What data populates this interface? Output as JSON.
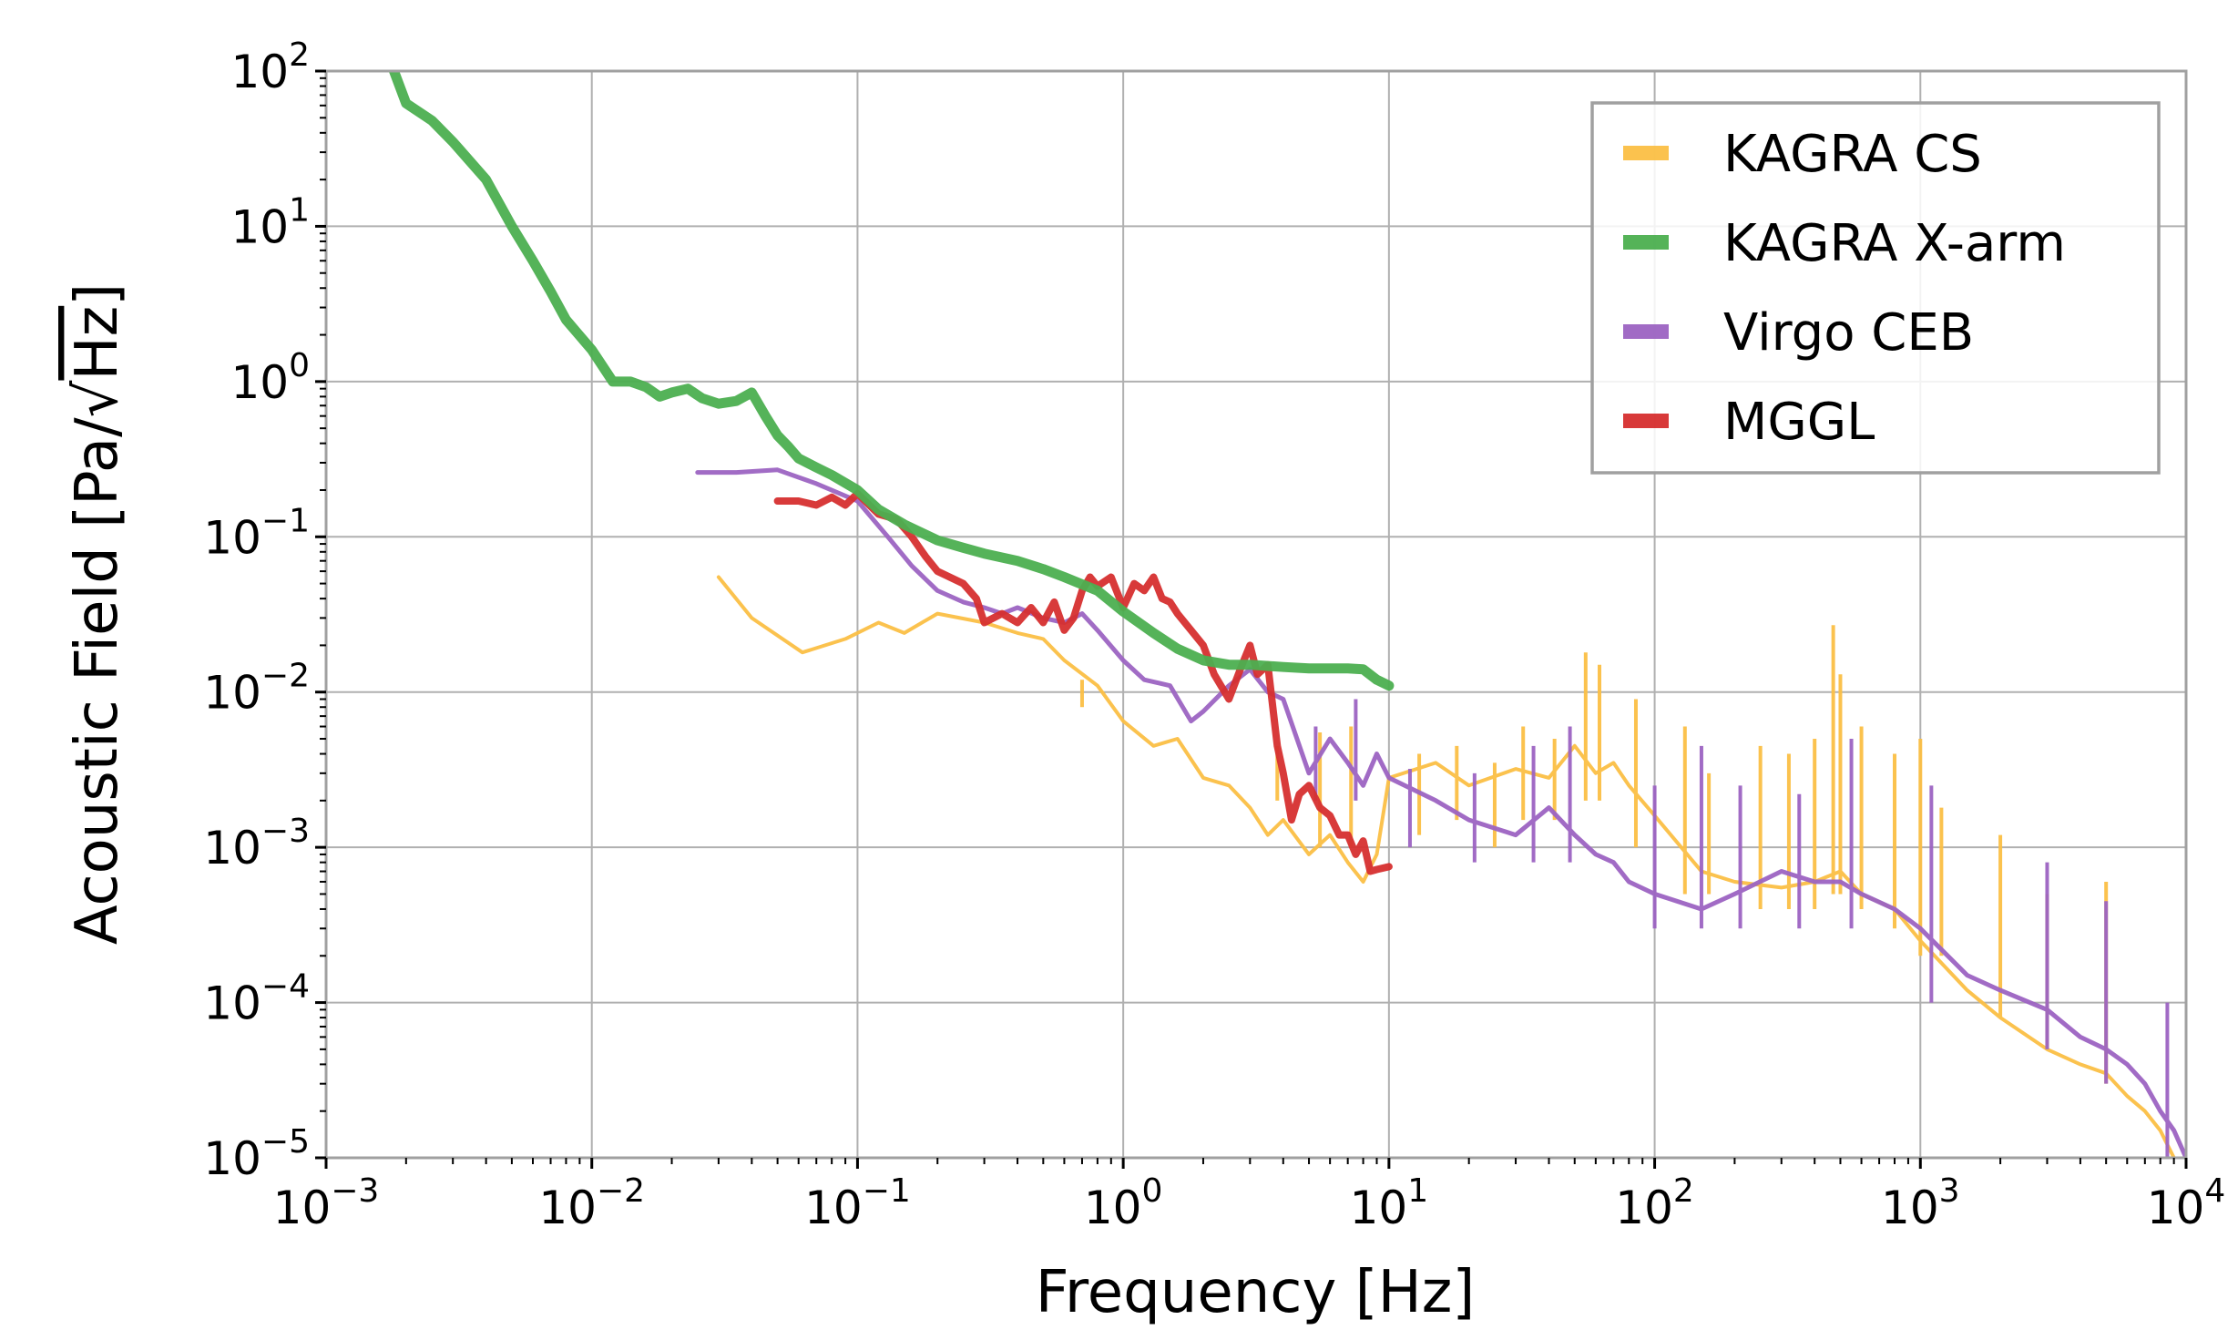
{
  "chart_data": {
    "type": "line",
    "xscale": "log",
    "yscale": "log",
    "xlabel": "Frequency [Hz]",
    "ylabel": "Acoustic Field [Pa/√Hz]",
    "ylabel_parts": {
      "main": "Acoustic Field [Pa/",
      "sqrt": "√",
      "radicand": "Hz",
      "close": "]"
    },
    "xlim": [
      0.001,
      10000
    ],
    "ylim": [
      1e-05,
      100
    ],
    "grid": true,
    "legend_position": "top-right",
    "x_ticks": [
      {
        "value": 0.001,
        "base": "10",
        "exp": "−3"
      },
      {
        "value": 0.01,
        "base": "10",
        "exp": "−2"
      },
      {
        "value": 0.1,
        "base": "10",
        "exp": "−1"
      },
      {
        "value": 1,
        "base": "10",
        "exp": "0"
      },
      {
        "value": 10,
        "base": "10",
        "exp": "1"
      },
      {
        "value": 100,
        "base": "10",
        "exp": "2"
      },
      {
        "value": 1000,
        "base": "10",
        "exp": "3"
      },
      {
        "value": 10000,
        "base": "10",
        "exp": "4"
      }
    ],
    "y_ticks": [
      {
        "value": 100,
        "base": "10",
        "exp": "2"
      },
      {
        "value": 10,
        "base": "10",
        "exp": "1"
      },
      {
        "value": 1,
        "base": "10",
        "exp": "0"
      },
      {
        "value": 0.1,
        "base": "10",
        "exp": "−1"
      },
      {
        "value": 0.01,
        "base": "10",
        "exp": "−2"
      },
      {
        "value": 0.001,
        "base": "10",
        "exp": "−3"
      },
      {
        "value": 0.0001,
        "base": "10",
        "exp": "−4"
      },
      {
        "value": 1e-05,
        "base": "10",
        "exp": "−5"
      }
    ],
    "series": [
      {
        "name": "KAGRA CS",
        "color": "#fbbf45",
        "width": 4,
        "opacity": 0.95,
        "x": [
          0.03,
          0.04,
          0.062,
          0.09,
          0.12,
          0.15,
          0.2,
          0.3,
          0.4,
          0.5,
          0.6,
          0.8,
          1.0,
          1.3,
          1.6,
          2.0,
          2.5,
          3.0,
          3.5,
          4.0,
          5.0,
          6.0,
          7.0,
          8.0,
          9.0,
          10,
          15,
          20,
          30,
          40,
          50,
          60,
          70,
          80,
          100,
          150,
          200,
          300,
          400,
          500,
          600,
          800,
          1000,
          1500,
          2000,
          3000,
          4000,
          5000,
          6000,
          7000,
          8000,
          9000
        ],
        "y": [
          0.055,
          0.03,
          0.018,
          0.022,
          0.028,
          0.024,
          0.032,
          0.028,
          0.024,
          0.022,
          0.016,
          0.011,
          0.0065,
          0.0045,
          0.005,
          0.0028,
          0.0025,
          0.0018,
          0.0012,
          0.0015,
          0.0009,
          0.0012,
          0.0008,
          0.0006,
          0.0009,
          0.0028,
          0.0035,
          0.0025,
          0.0032,
          0.0028,
          0.0045,
          0.003,
          0.0035,
          0.0025,
          0.0016,
          0.0007,
          0.0006,
          0.00055,
          0.0006,
          0.0007,
          0.0005,
          0.0004,
          0.00025,
          0.00012,
          8e-05,
          5e-05,
          4e-05,
          3.5e-05,
          2.5e-05,
          2e-05,
          1.5e-05,
          1e-05
        ],
        "spikes": [
          {
            "x": 0.7,
            "y": 0.012,
            "base": 0.008
          },
          {
            "x": 3.8,
            "y": 0.0045,
            "base": 0.002
          },
          {
            "x": 5.5,
            "y": 0.0055,
            "base": 0.001
          },
          {
            "x": 7.2,
            "y": 0.006,
            "base": 0.001
          },
          {
            "x": 13,
            "y": 0.004,
            "base": 0.0012
          },
          {
            "x": 18,
            "y": 0.0045,
            "base": 0.0015
          },
          {
            "x": 25,
            "y": 0.0035,
            "base": 0.001
          },
          {
            "x": 32,
            "y": 0.006,
            "base": 0.0015
          },
          {
            "x": 42,
            "y": 0.005,
            "base": 0.0015
          },
          {
            "x": 55,
            "y": 0.018,
            "base": 0.002
          },
          {
            "x": 62,
            "y": 0.015,
            "base": 0.002
          },
          {
            "x": 85,
            "y": 0.009,
            "base": 0.001
          },
          {
            "x": 130,
            "y": 0.006,
            "base": 0.0005
          },
          {
            "x": 160,
            "y": 0.003,
            "base": 0.0005
          },
          {
            "x": 250,
            "y": 0.0045,
            "base": 0.0004
          },
          {
            "x": 320,
            "y": 0.004,
            "base": 0.0004
          },
          {
            "x": 400,
            "y": 0.005,
            "base": 0.0004
          },
          {
            "x": 470,
            "y": 0.027,
            "base": 0.0005
          },
          {
            "x": 500,
            "y": 0.013,
            "base": 0.0005
          },
          {
            "x": 600,
            "y": 0.006,
            "base": 0.0004
          },
          {
            "x": 800,
            "y": 0.004,
            "base": 0.0003
          },
          {
            "x": 1000,
            "y": 0.005,
            "base": 0.0002
          },
          {
            "x": 1200,
            "y": 0.0018,
            "base": 0.0002
          },
          {
            "x": 2000,
            "y": 0.0012,
            "base": 8e-05
          },
          {
            "x": 3000,
            "y": 0.0005,
            "base": 5e-05
          },
          {
            "x": 5000,
            "y": 0.0006,
            "base": 3e-05
          }
        ]
      },
      {
        "name": "KAGRA X-arm",
        "color": "#4caf50",
        "width": 11,
        "opacity": 0.95,
        "x": [
          0.0018,
          0.002,
          0.0025,
          0.003,
          0.004,
          0.005,
          0.006,
          0.007,
          0.008,
          0.01,
          0.012,
          0.014,
          0.016,
          0.018,
          0.02,
          0.023,
          0.026,
          0.03,
          0.035,
          0.04,
          0.045,
          0.05,
          0.055,
          0.06,
          0.07,
          0.08,
          0.1,
          0.12,
          0.15,
          0.2,
          0.25,
          0.3,
          0.4,
          0.5,
          0.6,
          0.8,
          1.0,
          1.3,
          1.6,
          2.0,
          2.5,
          3.0,
          4.0,
          5.0,
          6.0,
          7.0,
          8.0,
          9.0,
          10
        ],
        "y": [
          100,
          62,
          48,
          35,
          20,
          10,
          6.0,
          3.8,
          2.5,
          1.6,
          1.0,
          1.0,
          0.92,
          0.8,
          0.85,
          0.9,
          0.78,
          0.72,
          0.75,
          0.85,
          0.6,
          0.45,
          0.38,
          0.32,
          0.28,
          0.25,
          0.2,
          0.15,
          0.12,
          0.095,
          0.085,
          0.078,
          0.07,
          0.062,
          0.055,
          0.045,
          0.033,
          0.024,
          0.019,
          0.016,
          0.015,
          0.015,
          0.0145,
          0.0142,
          0.0142,
          0.0142,
          0.014,
          0.012,
          0.011
        ]
      },
      {
        "name": "Virgo CEB",
        "color": "#9c64c2",
        "width": 5,
        "opacity": 0.95,
        "x": [
          0.025,
          0.035,
          0.05,
          0.07,
          0.1,
          0.13,
          0.16,
          0.2,
          0.25,
          0.3,
          0.35,
          0.4,
          0.5,
          0.6,
          0.7,
          0.8,
          1.0,
          1.2,
          1.5,
          1.8,
          2.0,
          2.5,
          3.0,
          3.5,
          4.0,
          5.0,
          6.0,
          7.0,
          8.0,
          9.0,
          10,
          15,
          20,
          30,
          40,
          50,
          60,
          70,
          80,
          100,
          150,
          200,
          300,
          400,
          500,
          600,
          800,
          1000,
          1500,
          2000,
          3000,
          4000,
          5000,
          6000,
          7000,
          8000,
          9000,
          10000
        ],
        "y": [
          0.26,
          0.26,
          0.27,
          0.22,
          0.17,
          0.1,
          0.065,
          0.045,
          0.038,
          0.035,
          0.032,
          0.035,
          0.03,
          0.028,
          0.032,
          0.025,
          0.016,
          0.012,
          0.011,
          0.0065,
          0.0075,
          0.011,
          0.014,
          0.01,
          0.009,
          0.003,
          0.005,
          0.0035,
          0.0025,
          0.004,
          0.0028,
          0.002,
          0.0015,
          0.0012,
          0.0018,
          0.0012,
          0.0009,
          0.0008,
          0.0006,
          0.0005,
          0.0004,
          0.0005,
          0.0007,
          0.0006,
          0.0006,
          0.0005,
          0.0004,
          0.0003,
          0.00015,
          0.00012,
          9e-05,
          6e-05,
          5e-05,
          4e-05,
          3e-05,
          2e-05,
          1.5e-05,
          1e-05
        ],
        "spikes": [
          {
            "x": 5.3,
            "y": 0.006,
            "base": 0.002
          },
          {
            "x": 7.5,
            "y": 0.009,
            "base": 0.002
          },
          {
            "x": 12,
            "y": 0.0032,
            "base": 0.001
          },
          {
            "x": 21,
            "y": 0.003,
            "base": 0.0008
          },
          {
            "x": 35,
            "y": 0.0045,
            "base": 0.0008
          },
          {
            "x": 48,
            "y": 0.006,
            "base": 0.0008
          },
          {
            "x": 100,
            "y": 0.0025,
            "base": 0.0003
          },
          {
            "x": 150,
            "y": 0.0045,
            "base": 0.0003
          },
          {
            "x": 210,
            "y": 0.0025,
            "base": 0.0003
          },
          {
            "x": 350,
            "y": 0.0022,
            "base": 0.0003
          },
          {
            "x": 550,
            "y": 0.005,
            "base": 0.0003
          },
          {
            "x": 1100,
            "y": 0.0025,
            "base": 0.0001
          },
          {
            "x": 3000,
            "y": 0.0008,
            "base": 5e-05
          },
          {
            "x": 5000,
            "y": 0.00045,
            "base": 3e-05
          },
          {
            "x": 8500,
            "y": 0.0001,
            "base": 1e-05
          }
        ]
      },
      {
        "name": "MGGL",
        "color": "#d62f2f",
        "width": 8,
        "opacity": 0.95,
        "x": [
          0.05,
          0.06,
          0.07,
          0.08,
          0.09,
          0.1,
          0.12,
          0.14,
          0.16,
          0.18,
          0.2,
          0.25,
          0.28,
          0.3,
          0.35,
          0.4,
          0.45,
          0.5,
          0.55,
          0.6,
          0.65,
          0.7,
          0.75,
          0.8,
          0.9,
          1.0,
          1.1,
          1.2,
          1.3,
          1.4,
          1.5,
          1.6,
          1.8,
          2.0,
          2.2,
          2.5,
          2.8,
          3.0,
          3.2,
          3.5,
          3.8,
          4.0,
          4.3,
          4.6,
          5.0,
          5.5,
          6.0,
          6.5,
          7.0,
          7.5,
          8.0,
          8.5,
          9.0,
          10
        ],
        "y": [
          0.17,
          0.17,
          0.16,
          0.18,
          0.16,
          0.19,
          0.14,
          0.13,
          0.1,
          0.075,
          0.06,
          0.05,
          0.04,
          0.028,
          0.032,
          0.028,
          0.035,
          0.028,
          0.038,
          0.025,
          0.03,
          0.045,
          0.055,
          0.048,
          0.055,
          0.035,
          0.05,
          0.045,
          0.055,
          0.04,
          0.038,
          0.032,
          0.025,
          0.02,
          0.013,
          0.009,
          0.015,
          0.02,
          0.013,
          0.015,
          0.0045,
          0.003,
          0.0015,
          0.0022,
          0.0025,
          0.0018,
          0.0016,
          0.0012,
          0.0012,
          0.0009,
          0.0011,
          0.0007,
          0.00072,
          0.00075
        ]
      }
    ]
  }
}
